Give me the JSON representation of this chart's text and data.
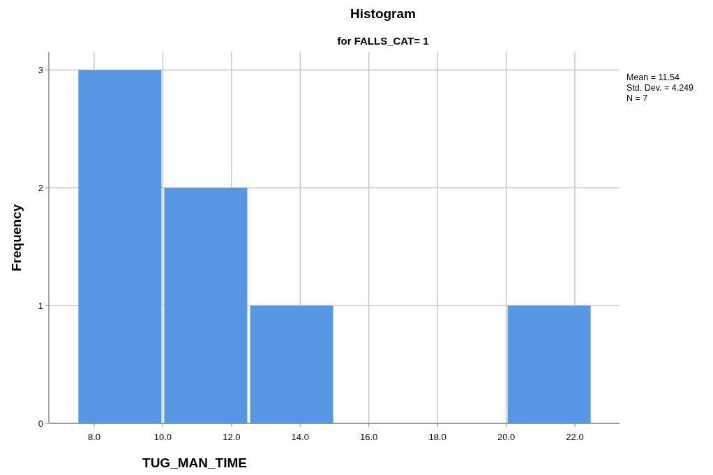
{
  "chart_data": {
    "type": "histogram",
    "title": "Histogram",
    "subtitle": "for FALLS_CAT= 1",
    "xlabel": "TUG_MAN_TIME",
    "ylabel": "Frequency",
    "bins": [
      7.5,
      10,
      12.5,
      15,
      17.5,
      20,
      22.5
    ],
    "values": [
      3,
      2,
      1,
      0,
      0,
      1
    ],
    "color": "#5797e3",
    "xlim": [
      6.68,
      23.3
    ],
    "xticks": [
      {
        "value": 8,
        "label": "8.0"
      },
      {
        "value": 10,
        "label": "10.0"
      },
      {
        "value": 12,
        "label": "12.0"
      },
      {
        "value": 14,
        "label": "14.0"
      },
      {
        "value": 16,
        "label": "16.0"
      },
      {
        "value": 18,
        "label": "18.0"
      },
      {
        "value": 20,
        "label": "20.0"
      },
      {
        "value": 22,
        "label": "22.0"
      }
    ],
    "ylim": [
      0,
      3.15
    ],
    "yticks": [
      0,
      1,
      2,
      3
    ],
    "grid": true,
    "annotations": [
      "Mean = 11.54",
      "Std. Dev. = 4.249",
      "N = 7"
    ]
  }
}
